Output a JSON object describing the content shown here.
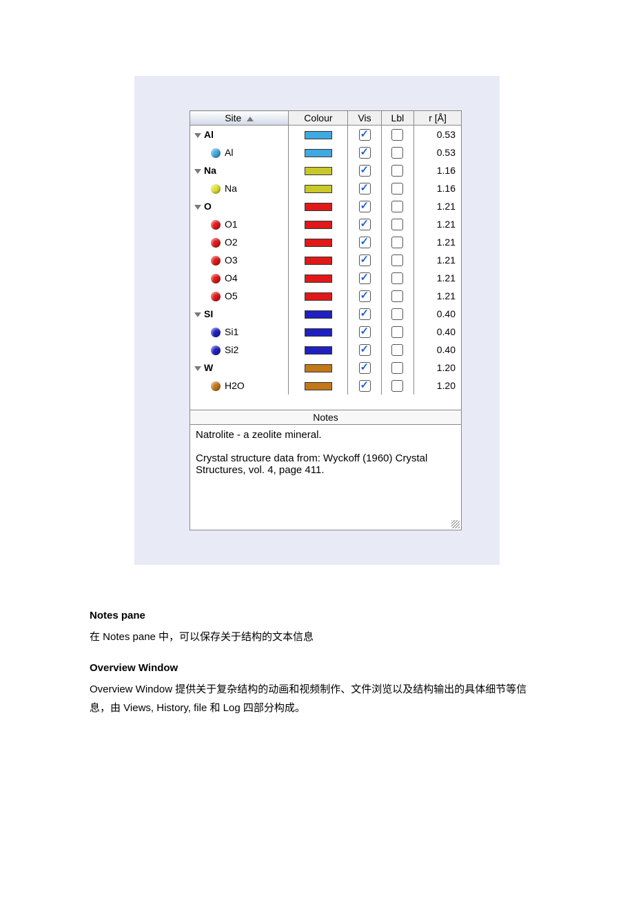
{
  "table": {
    "headers": {
      "site": "Site",
      "colour": "Colour",
      "vis": "Vis",
      "lbl": "Lbl",
      "r": "r [Å]"
    },
    "rows": [
      {
        "type": "group",
        "label": "Al",
        "color": "#3fa9e0",
        "vis": true,
        "lbl": false,
        "r": "0.53"
      },
      {
        "type": "child",
        "label": "Al",
        "sphere": "#3fa9e0",
        "color": "#3fa9e0",
        "vis": true,
        "lbl": false,
        "r": "0.53"
      },
      {
        "type": "group",
        "label": "Na",
        "color": "#c8c828",
        "vis": true,
        "lbl": false,
        "r": "1.16"
      },
      {
        "type": "child",
        "label": "Na",
        "sphere": "#e0e030",
        "color": "#c8c828",
        "vis": true,
        "lbl": false,
        "r": "1.16"
      },
      {
        "type": "group",
        "label": "O",
        "color": "#e01818",
        "vis": true,
        "lbl": false,
        "r": "1.21"
      },
      {
        "type": "child",
        "label": "O1",
        "sphere": "#e01818",
        "color": "#e01818",
        "vis": true,
        "lbl": false,
        "r": "1.21"
      },
      {
        "type": "child",
        "label": "O2",
        "sphere": "#e01818",
        "color": "#e01818",
        "vis": true,
        "lbl": false,
        "r": "1.21"
      },
      {
        "type": "child",
        "label": "O3",
        "sphere": "#e01818",
        "color": "#e01818",
        "vis": true,
        "lbl": false,
        "r": "1.21"
      },
      {
        "type": "child",
        "label": "O4",
        "sphere": "#e01818",
        "color": "#e01818",
        "vis": true,
        "lbl": false,
        "r": "1.21"
      },
      {
        "type": "child",
        "label": "O5",
        "sphere": "#e01818",
        "color": "#e01818",
        "vis": true,
        "lbl": false,
        "r": "1.21"
      },
      {
        "type": "group",
        "label": "SI",
        "color": "#2020c0",
        "vis": true,
        "lbl": false,
        "r": "0.40"
      },
      {
        "type": "child",
        "label": "Si1",
        "sphere": "#2020c0",
        "color": "#2020c0",
        "vis": true,
        "lbl": false,
        "r": "0.40"
      },
      {
        "type": "child",
        "label": "Si2",
        "sphere": "#2020c0",
        "color": "#2020c0",
        "vis": true,
        "lbl": false,
        "r": "0.40"
      },
      {
        "type": "group",
        "label": "W",
        "color": "#c07818",
        "vis": true,
        "lbl": false,
        "r": "1.20"
      },
      {
        "type": "child",
        "label": "H2O",
        "sphere": "#c07818",
        "color": "#c07818",
        "vis": true,
        "lbl": false,
        "r": "1.20"
      }
    ]
  },
  "notes": {
    "header": "Notes",
    "line1": "Natrolite - a zeolite mineral.",
    "line2": "Crystal structure data from: Wyckoff (1960) Crystal Structures, vol. 4, page 411."
  },
  "doc": {
    "h1": "Notes pane",
    "p1": "在 Notes pane 中，可以保存关于结构的文本信息",
    "h2": "Overview Window",
    "p2": "Overview Window 提供关于复杂结构的动画和视频制作、文件浏览以及结构输出的具体细节等信息，由 Views, History, file 和 Log 四部分构成。"
  }
}
